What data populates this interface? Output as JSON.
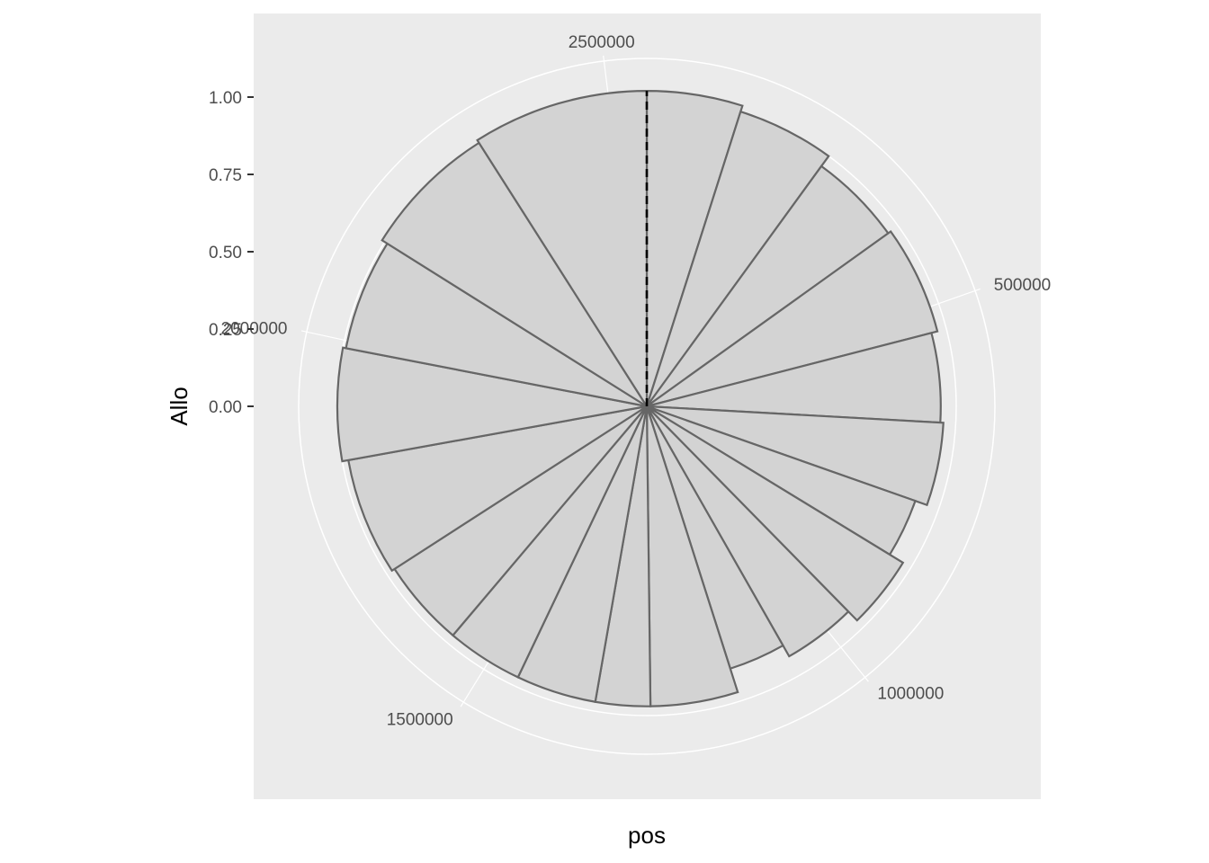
{
  "chart_data": {
    "type": "bar",
    "coord": "polar",
    "xlabel": "pos",
    "ylabel": "Allo",
    "theta_range": [
      0,
      2550000
    ],
    "ylim": [
      0,
      1.2
    ],
    "y_ticks": [
      {
        "value": 0,
        "label": "0.00"
      },
      {
        "value": 0.25,
        "label": "0.25"
      },
      {
        "value": 0.5,
        "label": "0.50"
      },
      {
        "value": 0.75,
        "label": "0.75"
      },
      {
        "value": 1.0,
        "label": "1.00"
      }
    ],
    "theta_ticks": [
      {
        "value": 500000,
        "label": "500000"
      },
      {
        "value": 1000000,
        "label": "1000000"
      },
      {
        "value": 1500000,
        "label": "1500000"
      },
      {
        "value": 2000000,
        "label": "2000000"
      },
      {
        "value": 2500000,
        "label": "2500000"
      }
    ],
    "bars": [
      {
        "start": 0,
        "end": 125000,
        "value": 1.02
      },
      {
        "start": 125000,
        "end": 255000,
        "value": 1.0
      },
      {
        "start": 255000,
        "end": 385000,
        "value": 0.96
      },
      {
        "start": 385000,
        "end": 535000,
        "value": 0.97
      },
      {
        "start": 535000,
        "end": 660000,
        "value": 0.95
      },
      {
        "start": 660000,
        "end": 775000,
        "value": 0.96
      },
      {
        "start": 775000,
        "end": 860000,
        "value": 0.92
      },
      {
        "start": 860000,
        "end": 960000,
        "value": 0.97
      },
      {
        "start": 960000,
        "end": 1065000,
        "value": 0.93
      },
      {
        "start": 1065000,
        "end": 1150000,
        "value": 0.89
      },
      {
        "start": 1150000,
        "end": 1270000,
        "value": 0.97
      },
      {
        "start": 1270000,
        "end": 1345000,
        "value": 0.97
      },
      {
        "start": 1345000,
        "end": 1455000,
        "value": 0.97
      },
      {
        "start": 1455000,
        "end": 1560000,
        "value": 0.97
      },
      {
        "start": 1560000,
        "end": 1680000,
        "value": 0.97
      },
      {
        "start": 1680000,
        "end": 1840000,
        "value": 0.98
      },
      {
        "start": 1840000,
        "end": 1990000,
        "value": 1.0
      },
      {
        "start": 1990000,
        "end": 2140000,
        "value": 0.99
      },
      {
        "start": 2140000,
        "end": 2320000,
        "value": 1.01
      },
      {
        "start": 2320000,
        "end": 2550000,
        "value": 1.02
      }
    ],
    "reference_line": {
      "value": 2550000,
      "style": "dashed"
    },
    "grid": true,
    "legend": "none",
    "colors": {
      "panel": "#ebebeb",
      "grid": "#ffffff",
      "bar_fill": "#d3d3d3",
      "bar_stroke": "#666666",
      "reference": "#000000"
    }
  }
}
